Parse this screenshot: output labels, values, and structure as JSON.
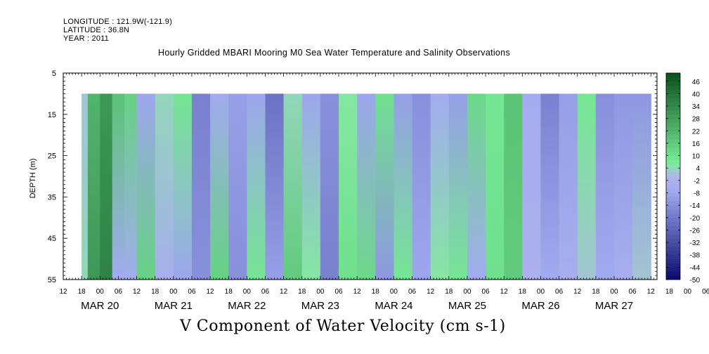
{
  "header": {
    "longitude": "LONGITUDE : 121.9W(-121.9)",
    "latitude": "LATITUDE : 36.8N",
    "year": "YEAR : 2011"
  },
  "chart_data": {
    "type": "heatmap",
    "title": "Hourly Gridded MBARI Mooring M0 Sea Water Temperature and Salinity Observations",
    "xlabel": "",
    "ylabel": "DEPTH (m)",
    "colorbar_label": "V Component of Water Velocity (cm s-1)",
    "ylim": [
      55,
      5
    ],
    "y_ticks": [
      5,
      15,
      25,
      35,
      45,
      55
    ],
    "x_range": [
      "2011-03-19T12:00",
      "2011-03-27T14:00"
    ],
    "data_extent": {
      "x": [
        "2011-03-19T18:00",
        "2011-03-27T12:00"
      ],
      "depth": [
        10,
        55
      ]
    },
    "hour_ticks": [
      "12",
      "18",
      "00",
      "06",
      "12",
      "18",
      "00",
      "06",
      "12",
      "18",
      "00",
      "06",
      "12",
      "18",
      "00",
      "06",
      "12",
      "18",
      "00",
      "06",
      "12",
      "18",
      "00",
      "06",
      "12",
      "18",
      "00",
      "06",
      "12",
      "18",
      "00",
      "06",
      "12",
      "18",
      "00",
      "06",
      "12"
    ],
    "day_labels": [
      "MAR 20",
      "MAR 21",
      "MAR 22",
      "MAR 23",
      "MAR 24",
      "MAR 25",
      "MAR 26",
      "MAR 27"
    ],
    "colorbar_levels": [
      46,
      40,
      34,
      28,
      22,
      16,
      10,
      4,
      -2,
      -8,
      -14,
      -20,
      -26,
      -32,
      -38,
      -44,
      -50
    ],
    "colorbar_range": [
      -50,
      50
    ],
    "field": [
      {
        "start": "2011-03-19T18:00",
        "end": "2011-03-19T20:00",
        "v_top": 2,
        "v_bottom": 4
      },
      {
        "start": "2011-03-19T20:00",
        "end": "2011-03-20T00:00",
        "v_top": 22,
        "v_bottom": 30
      },
      {
        "start": "2011-03-20T00:00",
        "end": "2011-03-20T04:00",
        "v_top": 30,
        "v_bottom": 36
      },
      {
        "start": "2011-03-20T04:00",
        "end": "2011-03-20T08:00",
        "v_top": 18,
        "v_bottom": -6
      },
      {
        "start": "2011-03-20T08:00",
        "end": "2011-03-20T12:00",
        "v_top": 14,
        "v_bottom": -6
      },
      {
        "start": "2011-03-20T12:00",
        "end": "2011-03-20T18:00",
        "v_top": -8,
        "v_bottom": 14
      },
      {
        "start": "2011-03-20T18:00",
        "end": "2011-03-21T00:00",
        "v_top": 4,
        "v_bottom": -4
      },
      {
        "start": "2011-03-21T00:00",
        "end": "2011-03-21T06:00",
        "v_top": 8,
        "v_bottom": -8
      },
      {
        "start": "2011-03-21T06:00",
        "end": "2011-03-21T12:00",
        "v_top": -18,
        "v_bottom": -14
      },
      {
        "start": "2011-03-21T12:00",
        "end": "2011-03-21T18:00",
        "v_top": -6,
        "v_bottom": 14
      },
      {
        "start": "2011-03-21T18:00",
        "end": "2011-03-22T00:00",
        "v_top": -10,
        "v_bottom": -14
      },
      {
        "start": "2011-03-22T00:00",
        "end": "2011-03-22T06:00",
        "v_top": -8,
        "v_bottom": 8
      },
      {
        "start": "2011-03-22T06:00",
        "end": "2011-03-22T12:00",
        "v_top": -22,
        "v_bottom": -10
      },
      {
        "start": "2011-03-22T12:00",
        "end": "2011-03-22T18:00",
        "v_top": 4,
        "v_bottom": 16
      },
      {
        "start": "2011-03-22T18:00",
        "end": "2011-03-23T00:00",
        "v_top": -8,
        "v_bottom": 6
      },
      {
        "start": "2011-03-23T00:00",
        "end": "2011-03-23T06:00",
        "v_top": -14,
        "v_bottom": -18
      },
      {
        "start": "2011-03-23T06:00",
        "end": "2011-03-23T12:00",
        "v_top": 6,
        "v_bottom": 10
      },
      {
        "start": "2011-03-23T12:00",
        "end": "2011-03-23T18:00",
        "v_top": -8,
        "v_bottom": 12
      },
      {
        "start": "2011-03-23T18:00",
        "end": "2011-03-24T00:00",
        "v_top": 10,
        "v_bottom": -12
      },
      {
        "start": "2011-03-24T00:00",
        "end": "2011-03-24T06:00",
        "v_top": -10,
        "v_bottom": 8
      },
      {
        "start": "2011-03-24T06:00",
        "end": "2011-03-24T12:00",
        "v_top": -14,
        "v_bottom": -8
      },
      {
        "start": "2011-03-24T12:00",
        "end": "2011-03-24T18:00",
        "v_top": -6,
        "v_bottom": 6
      },
      {
        "start": "2011-03-24T18:00",
        "end": "2011-03-25T00:00",
        "v_top": -10,
        "v_bottom": 8
      },
      {
        "start": "2011-03-25T00:00",
        "end": "2011-03-25T06:00",
        "v_top": 12,
        "v_bottom": -6
      },
      {
        "start": "2011-03-25T06:00",
        "end": "2011-03-25T12:00",
        "v_top": 8,
        "v_bottom": 10
      },
      {
        "start": "2011-03-25T12:00",
        "end": "2011-03-25T18:00",
        "v_top": 18,
        "v_bottom": 16
      },
      {
        "start": "2011-03-25T18:00",
        "end": "2011-03-26T00:00",
        "v_top": -6,
        "v_bottom": -2
      },
      {
        "start": "2011-03-26T00:00",
        "end": "2011-03-26T06:00",
        "v_top": -18,
        "v_bottom": -6
      },
      {
        "start": "2011-03-26T06:00",
        "end": "2011-03-26T12:00",
        "v_top": -10,
        "v_bottom": -4
      },
      {
        "start": "2011-03-26T12:00",
        "end": "2011-03-26T18:00",
        "v_top": 8,
        "v_bottom": 2
      },
      {
        "start": "2011-03-26T18:00",
        "end": "2011-03-27T00:00",
        "v_top": -14,
        "v_bottom": -6
      },
      {
        "start": "2011-03-27T00:00",
        "end": "2011-03-27T06:00",
        "v_top": -12,
        "v_bottom": -4
      },
      {
        "start": "2011-03-27T06:00",
        "end": "2011-03-27T12:00",
        "v_top": -12,
        "v_bottom": 2
      }
    ]
  }
}
